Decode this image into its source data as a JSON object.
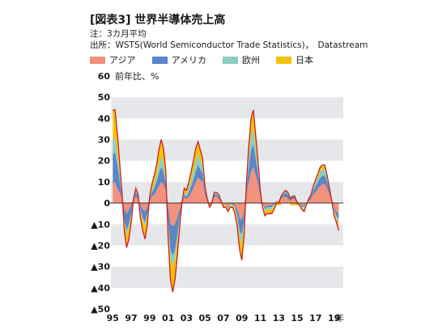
{
  "header": {
    "title": "[図表3] 世界半導体売上高",
    "note": "注：3カ月平均",
    "source": "出所：WSTS(World Semiconductor Trade Statistics)，　Datastream"
  },
  "chart_data": {
    "type": "area",
    "stacked": true,
    "title": "[図表3] 世界半導体売上高",
    "ylabel": "前年比、%",
    "xlabel": "年",
    "ylim": [
      -50,
      60
    ],
    "xlim": [
      1994.8,
      2020.0
    ],
    "yticks": [
      60,
      50,
      40,
      30,
      20,
      10,
      0,
      -10,
      -20,
      -30,
      -40,
      -50
    ],
    "ytick_labels": [
      "60",
      "50",
      "40",
      "30",
      "20",
      "10",
      "0",
      "▲10",
      "▲20",
      "▲30",
      "▲40",
      "▲50"
    ],
    "xticks": [
      1995,
      1997,
      1999,
      2001,
      2003,
      2005,
      2007,
      2009,
      2011,
      2013,
      2015,
      2017,
      2019
    ],
    "xtick_labels": [
      "95",
      "97",
      "99",
      "01",
      "03",
      "05",
      "07",
      "09",
      "11",
      "13",
      "15",
      "17",
      "19"
    ],
    "grid": "horizontal bands",
    "legend_position": "top",
    "total_line_color": "#cc1f1f",
    "x": [
      1995.0,
      1995.25,
      1995.5,
      1995.75,
      1996.0,
      1996.25,
      1996.5,
      1996.75,
      1997.0,
      1997.25,
      1997.5,
      1997.75,
      1998.0,
      1998.25,
      1998.5,
      1998.75,
      1999.0,
      1999.25,
      1999.5,
      1999.75,
      2000.0,
      2000.25,
      2000.5,
      2000.75,
      2001.0,
      2001.25,
      2001.5,
      2001.75,
      2002.0,
      2002.25,
      2002.5,
      2002.75,
      2003.0,
      2003.25,
      2003.5,
      2003.75,
      2004.0,
      2004.25,
      2004.5,
      2004.75,
      2005.0,
      2005.25,
      2005.5,
      2005.75,
      2006.0,
      2006.25,
      2006.5,
      2006.75,
      2007.0,
      2007.25,
      2007.5,
      2007.75,
      2008.0,
      2008.25,
      2008.5,
      2008.75,
      2009.0,
      2009.25,
      2009.5,
      2009.75,
      2010.0,
      2010.25,
      2010.5,
      2010.75,
      2011.0,
      2011.25,
      2011.5,
      2011.75,
      2012.0,
      2012.25,
      2012.5,
      2012.75,
      2013.0,
      2013.25,
      2013.5,
      2013.75,
      2014.0,
      2014.25,
      2014.5,
      2014.75,
      2015.0,
      2015.25,
      2015.5,
      2015.75,
      2016.0,
      2016.25,
      2016.5,
      2016.75,
      2017.0,
      2017.25,
      2017.5,
      2017.75,
      2018.0,
      2018.25,
      2018.5,
      2018.75,
      2019.0,
      2019.25,
      2019.5
    ],
    "series": [
      {
        "name": "アジア",
        "color": "#f2917c",
        "values": [
          9,
          10,
          7,
          5,
          2,
          -3,
          -5,
          -3,
          -1,
          2,
          3,
          2,
          -1,
          -3,
          -4,
          -2,
          1,
          3,
          4,
          6,
          8,
          10,
          9,
          6,
          -2,
          -10,
          -11,
          -10,
          -7,
          -3,
          1,
          3,
          2,
          3,
          5,
          7,
          10,
          12,
          11,
          10,
          4,
          1,
          -1,
          1,
          3,
          3,
          2,
          1,
          -1,
          -1,
          -2,
          -1,
          0,
          -1,
          -3,
          -7,
          -8,
          -4,
          4,
          10,
          15,
          17,
          13,
          9,
          3,
          -1,
          -2,
          -1,
          -1,
          -1,
          0,
          1,
          1,
          2,
          3,
          3,
          2,
          1,
          2,
          2,
          1,
          0,
          -1,
          -1,
          0,
          1,
          2,
          4,
          5,
          7,
          8,
          9,
          9,
          7,
          4,
          1,
          -2,
          -4,
          -5
        ]
      },
      {
        "name": "アメリカ",
        "color": "#5a85c6",
        "values": [
          14,
          14,
          11,
          6,
          1,
          -5,
          -8,
          -7,
          -4,
          0,
          2,
          1,
          -2,
          -4,
          -5,
          -3,
          1,
          2,
          3,
          4,
          6,
          7,
          6,
          3,
          -6,
          -12,
          -14,
          -12,
          -8,
          -4,
          -1,
          1,
          1,
          2,
          3,
          4,
          5,
          6,
          5,
          4,
          2,
          1,
          0,
          0,
          1,
          1,
          1,
          0,
          0,
          0,
          -1,
          0,
          -1,
          -1,
          -3,
          -6,
          -7,
          -4,
          3,
          7,
          10,
          11,
          8,
          5,
          2,
          0,
          -1,
          -1,
          -1,
          -1,
          -1,
          0,
          0,
          1,
          1,
          2,
          2,
          1,
          1,
          1,
          0,
          0,
          -1,
          -1,
          0,
          1,
          1,
          2,
          3,
          3,
          4,
          4,
          4,
          3,
          2,
          1,
          -1,
          -2,
          -3
        ]
      },
      {
        "name": "欧州",
        "color": "#8dcdc2",
        "values": [
          7,
          7,
          5,
          3,
          1,
          -1,
          -2,
          -2,
          -1,
          0,
          1,
          1,
          -1,
          -1,
          -2,
          -1,
          0,
          1,
          2,
          3,
          4,
          5,
          4,
          2,
          -2,
          -4,
          -5,
          -4,
          -3,
          -2,
          0,
          1,
          1,
          2,
          3,
          4,
          5,
          5,
          4,
          3,
          1,
          0,
          0,
          0,
          1,
          1,
          1,
          0,
          0,
          0,
          0,
          0,
          0,
          -1,
          -2,
          -3,
          -4,
          -2,
          2,
          5,
          7,
          7,
          5,
          3,
          1,
          0,
          -1,
          -1,
          -1,
          -1,
          0,
          0,
          0,
          1,
          1,
          1,
          1,
          1,
          1,
          1,
          0,
          0,
          0,
          -1,
          0,
          0,
          1,
          1,
          2,
          2,
          3,
          3,
          3,
          2,
          1,
          0,
          -1,
          -1,
          -2
        ]
      },
      {
        "name": "日本",
        "color": "#f4c20d",
        "values": [
          14,
          13,
          10,
          5,
          1,
          -4,
          -6,
          -5,
          -3,
          0,
          1,
          0,
          -3,
          -5,
          -6,
          -4,
          1,
          3,
          4,
          5,
          7,
          8,
          7,
          4,
          -6,
          -10,
          -12,
          -10,
          -7,
          -3,
          0,
          2,
          2,
          3,
          4,
          5,
          6,
          6,
          5,
          4,
          1,
          0,
          -1,
          -1,
          0,
          0,
          0,
          0,
          -1,
          -1,
          -1,
          -1,
          -1,
          -2,
          -3,
          -6,
          -8,
          -5,
          1,
          5,
          8,
          9,
          6,
          3,
          0,
          -1,
          -2,
          -2,
          -2,
          -2,
          -2,
          -1,
          -1,
          -1,
          0,
          0,
          0,
          -1,
          -1,
          -1,
          -1,
          -1,
          -1,
          -1,
          -1,
          0,
          0,
          1,
          1,
          2,
          2,
          2,
          2,
          1,
          0,
          -1,
          -2,
          -2,
          -3
        ]
      }
    ]
  }
}
